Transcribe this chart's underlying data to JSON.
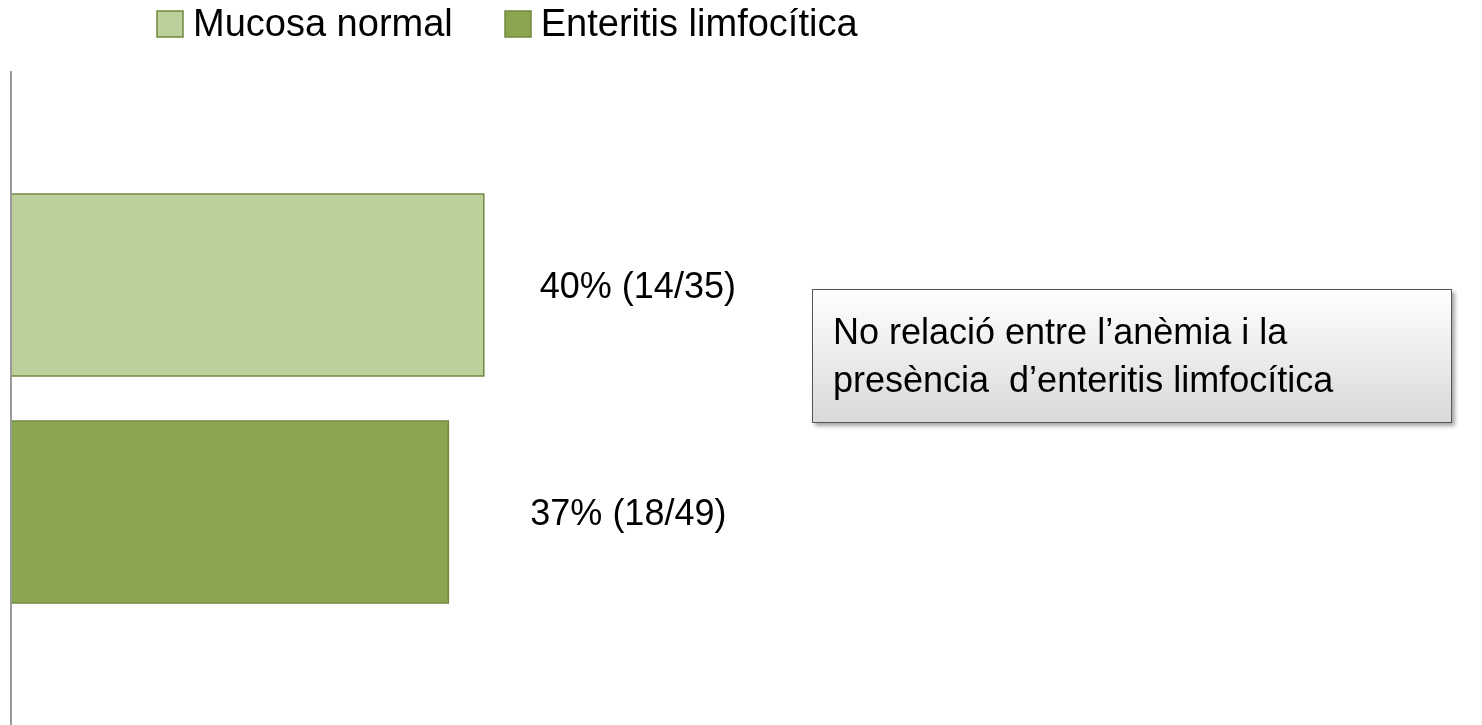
{
  "chart_data": {
    "type": "bar",
    "orientation": "horizontal",
    "categories": [
      null
    ],
    "series": [
      {
        "name": "Mucosa normal",
        "color": "#bbd09a",
        "values": [
          40
        ],
        "value_labels": [
          "40% (14/35)"
        ]
      },
      {
        "name": "Enteritis limfocítica",
        "color": "#8aa64e",
        "values": [
          37
        ],
        "value_labels": [
          "37% (18/49)"
        ]
      }
    ],
    "legend": "top",
    "grid": false,
    "tick_labels": false,
    "annotations": [
      "No relació entre l’anèmia i la presència  d’enteritis limfocítica"
    ]
  }
}
